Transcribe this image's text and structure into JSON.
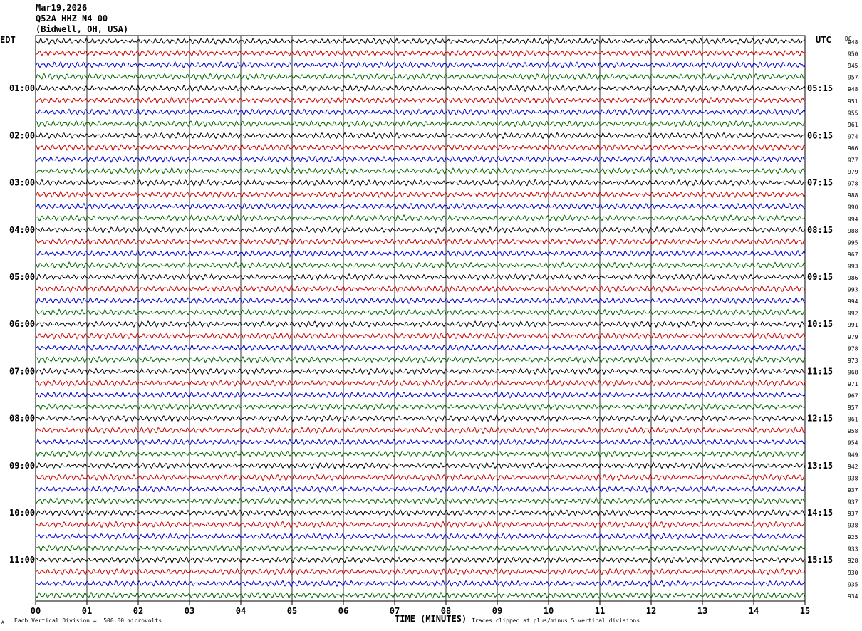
{
  "header": {
    "date": "Mar19,2026",
    "station": "Q52A HHZ N4 00",
    "location": "(Bidwell, OH, USA)"
  },
  "left_tz": "EDT",
  "right_tz": "UTC",
  "dc_label": "DC",
  "footer": {
    "scale_note": "Each Vertical Division =  500.00 microvolts",
    "clip_note": "Traces clipped at plus/minus 5 vertical divisions",
    "corner_mark": "A"
  },
  "chart_data": {
    "type": "line",
    "title": "",
    "xlabel": "TIME (MINUTES)",
    "ylabel": "",
    "xlim": [
      0,
      15
    ],
    "x_ticks": [
      "00",
      "01",
      "02",
      "03",
      "04",
      "05",
      "06",
      "07",
      "08",
      "09",
      "10",
      "11",
      "12",
      "13",
      "14",
      "15"
    ],
    "grid": "vertical lines at each minute",
    "trace_colors": [
      "#000000",
      "#cc0000",
      "#0000cc",
      "#006600"
    ],
    "left_hour_labels": [
      "01:00",
      "02:00",
      "03:00",
      "04:00",
      "05:00",
      "06:00",
      "07:00",
      "08:00",
      "09:00",
      "10:00",
      "11:00"
    ],
    "right_hour_labels": [
      "05:15",
      "06:15",
      "07:15",
      "08:15",
      "09:15",
      "10:15",
      "11:15",
      "12:15",
      "13:15",
      "14:15",
      "15:15"
    ],
    "dc_values": [
      "948",
      "950",
      "945",
      "957",
      "948",
      "951",
      "955",
      "961",
      "974",
      "966",
      "977",
      "979",
      "978",
      "988",
      "990",
      "994",
      "988",
      "995",
      "967",
      "993",
      "986",
      "993",
      "994",
      "992",
      "991",
      "979",
      "978",
      "973",
      "968",
      "971",
      "967",
      "957",
      "961",
      "958",
      "954",
      "949",
      "942",
      "938",
      "937",
      "937",
      "937",
      "938",
      "925",
      "933",
      "928",
      "930",
      "935",
      "934"
    ]
  }
}
